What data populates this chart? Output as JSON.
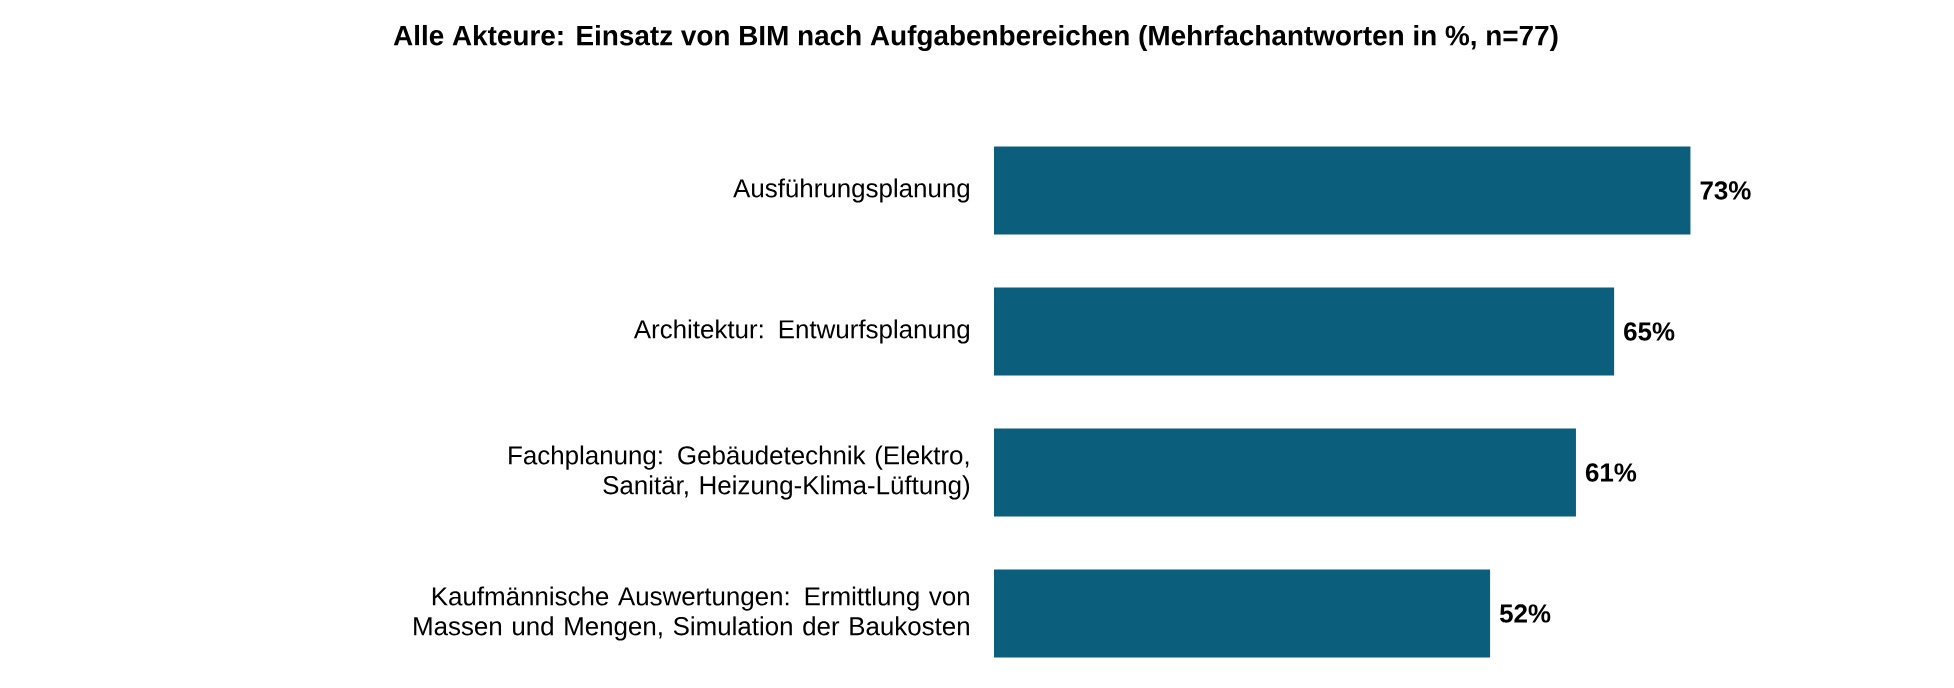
{
  "chart_data": {
    "type": "bar",
    "orientation": "horizontal",
    "title": "Alle Akteure: Einsatz von BIM nach Aufgabenbereichen (Mehrfachantworten in %, n=77)",
    "categories": [
      "Ausführungsplanung",
      "Architektur: Entwurfsplanung",
      "Fachplanung: Gebäudetechnik (Elektro, Sanitär, Heizung-Klima-Lüftung)",
      "Kaufmännische Auswertungen: Ermittlung von Massen und Mengen, Simulation der Baukosten"
    ],
    "values": [
      73,
      65,
      61,
      52
    ],
    "value_labels": [
      "73%",
      "65%",
      "61%",
      "52%"
    ],
    "color": "#0b5f7c"
  }
}
